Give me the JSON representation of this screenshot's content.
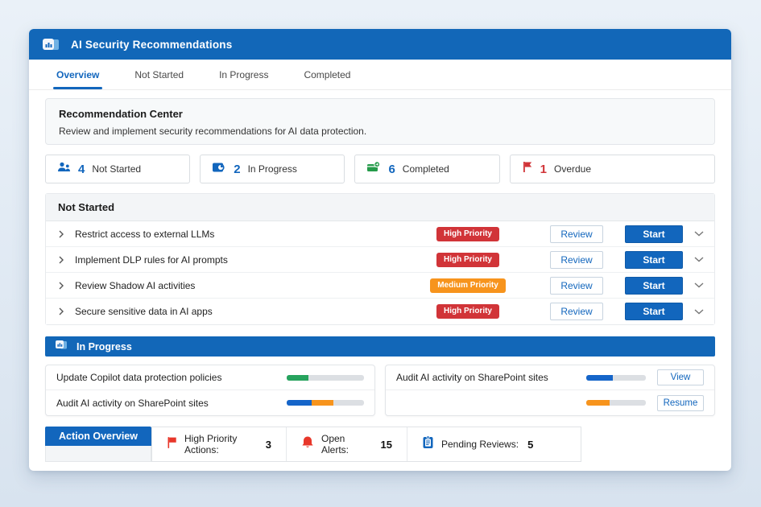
{
  "accent_color": "#1266bd",
  "window": {
    "title": "AI Security Recommendations"
  },
  "tabs": [
    {
      "label": "Overview"
    },
    {
      "label": "Not Started"
    },
    {
      "label": "In Progress"
    },
    {
      "label": "Completed"
    }
  ],
  "recommendation_center": {
    "title": "Recommendation Center",
    "subtitle": "Review and implement security recommendations for AI data protection."
  },
  "summary_cards": [
    {
      "icon": "people-icon",
      "count": "4",
      "count_color": "#1266bd",
      "label": "Not Started"
    },
    {
      "icon": "clipboard-pie-icon",
      "count": "2",
      "count_color": "#1266bd",
      "label": "In Progress"
    },
    {
      "icon": "completed-send-icon",
      "count": "6",
      "count_color": "#1266bd",
      "label": "Completed"
    },
    {
      "icon": "flag-icon",
      "count": "1",
      "count_color": "#d13438",
      "label": "Overdue"
    }
  ],
  "not_started": {
    "heading": "Not Started",
    "rows": [
      {
        "title": "Restrict access to external LLMs",
        "priority": "High Priority",
        "priority_color": "#d13438",
        "review_label": "Review",
        "start_label": "Start"
      },
      {
        "title": "Implement DLP rules for AI prompts",
        "priority": "High Priority",
        "priority_color": "#d13438",
        "review_label": "Review",
        "start_label": "Start"
      },
      {
        "title": "Review Shadow AI activities",
        "priority": "Medium Priority",
        "priority_color": "#f7941d",
        "review_label": "Review",
        "start_label": "Start"
      },
      {
        "title": "Secure sensitive data in AI apps",
        "priority": "High Priority",
        "priority_color": "#d13438",
        "review_label": "Review",
        "start_label": "Start"
      }
    ]
  },
  "in_progress": {
    "heading": "In Progress",
    "left_rows": [
      {
        "title": "Update Copilot data protection policies",
        "progress": [
          {
            "color": "#27a35e",
            "pct": 28
          }
        ]
      },
      {
        "title": "Audit AI activity on SharePoint sites",
        "progress": [
          {
            "color": "#1565c9",
            "pct": 32
          },
          {
            "color": "#f7941d",
            "pct": 28
          }
        ]
      }
    ],
    "right_rows": [
      {
        "title": "Audit AI activity on SharePoint sites",
        "progress": [
          {
            "color": "#1565c9",
            "pct": 45
          }
        ],
        "action_label": "View"
      },
      {
        "title": "",
        "progress": [
          {
            "color": "#f7941d",
            "pct": 39
          }
        ],
        "action_label": "Resume"
      }
    ]
  },
  "action_overview": {
    "tab_label": "Action Overview",
    "stats": [
      {
        "icon": "flag-icon",
        "label": "High Priority Actions:",
        "value": "3"
      },
      {
        "icon": "bell-icon",
        "label": "Open Alerts:",
        "value": "15"
      },
      {
        "icon": "clipboard-icon",
        "label": "Pending Reviews:",
        "value": "5"
      }
    ]
  }
}
